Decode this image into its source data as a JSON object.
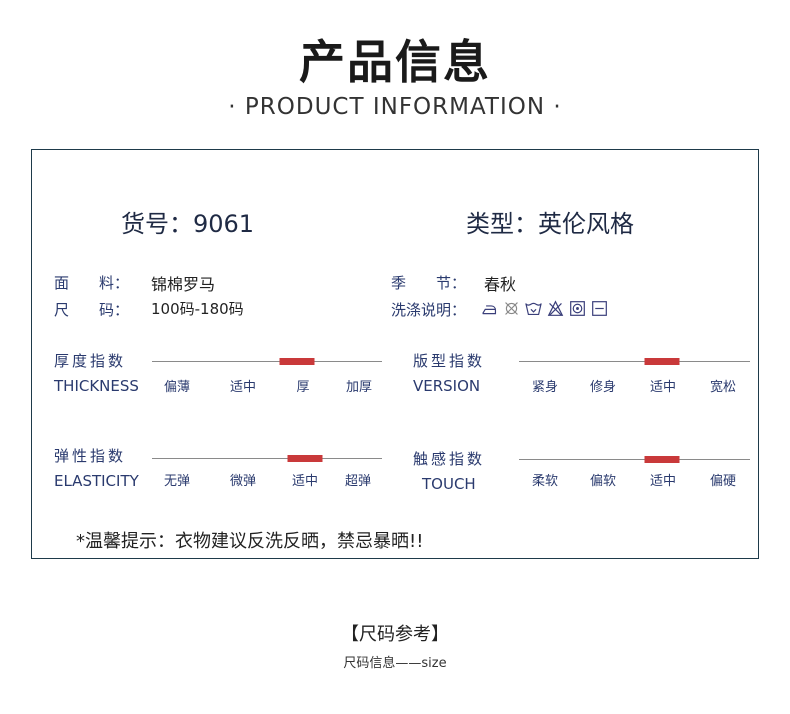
{
  "header": {
    "title": "产品信息",
    "subtitle": "· PRODUCT  INFORMATION ·"
  },
  "product": {
    "sku": "货号：9061",
    "style": "类型：英伦风格"
  },
  "specs": {
    "fabric_label": "面　　料：",
    "fabric_value": "锦棉罗马",
    "size_label": "尺　　码：",
    "size_value": "100码-180码",
    "season_label": "季　　节：",
    "season_value": "春秋",
    "wash_label": "洗涤说明：",
    "wash_icons": [
      "iron-icon",
      "no-wash-icon",
      "hand-wash-icon",
      "no-bleach-icon",
      "tumble-dry-icon",
      "flat-dry-icon"
    ]
  },
  "indicators": [
    {
      "cn": "厚度指数",
      "en": "THICKNESS",
      "options": [
        "偏薄",
        "适中",
        "厚",
        "加厚"
      ],
      "level": 0.63
    },
    {
      "cn": "版型指数",
      "en": "VERSION",
      "options": [
        "紧身",
        "修身",
        "适中",
        "宽松"
      ],
      "level": 0.62
    },
    {
      "cn": "弹性指数",
      "en": "ELASTICITY",
      "options": [
        "无弹",
        "微弹",
        "适中",
        "超弹"
      ],
      "level": 0.665
    },
    {
      "cn": "触感指数",
      "en": "TOUCH",
      "options": [
        "柔软",
        "偏软",
        "适中",
        "偏硬"
      ],
      "level": 0.62
    }
  ],
  "tip": "*温馨提示：衣物建议反洗反晒，禁忌暴晒!!",
  "size_section": {
    "title": "【尺码参考】",
    "subtitle": "尺码信息——size"
  },
  "colors": {
    "marker": "#c9393a",
    "border": "#1e3a4a",
    "label": "#2a3a6e"
  }
}
